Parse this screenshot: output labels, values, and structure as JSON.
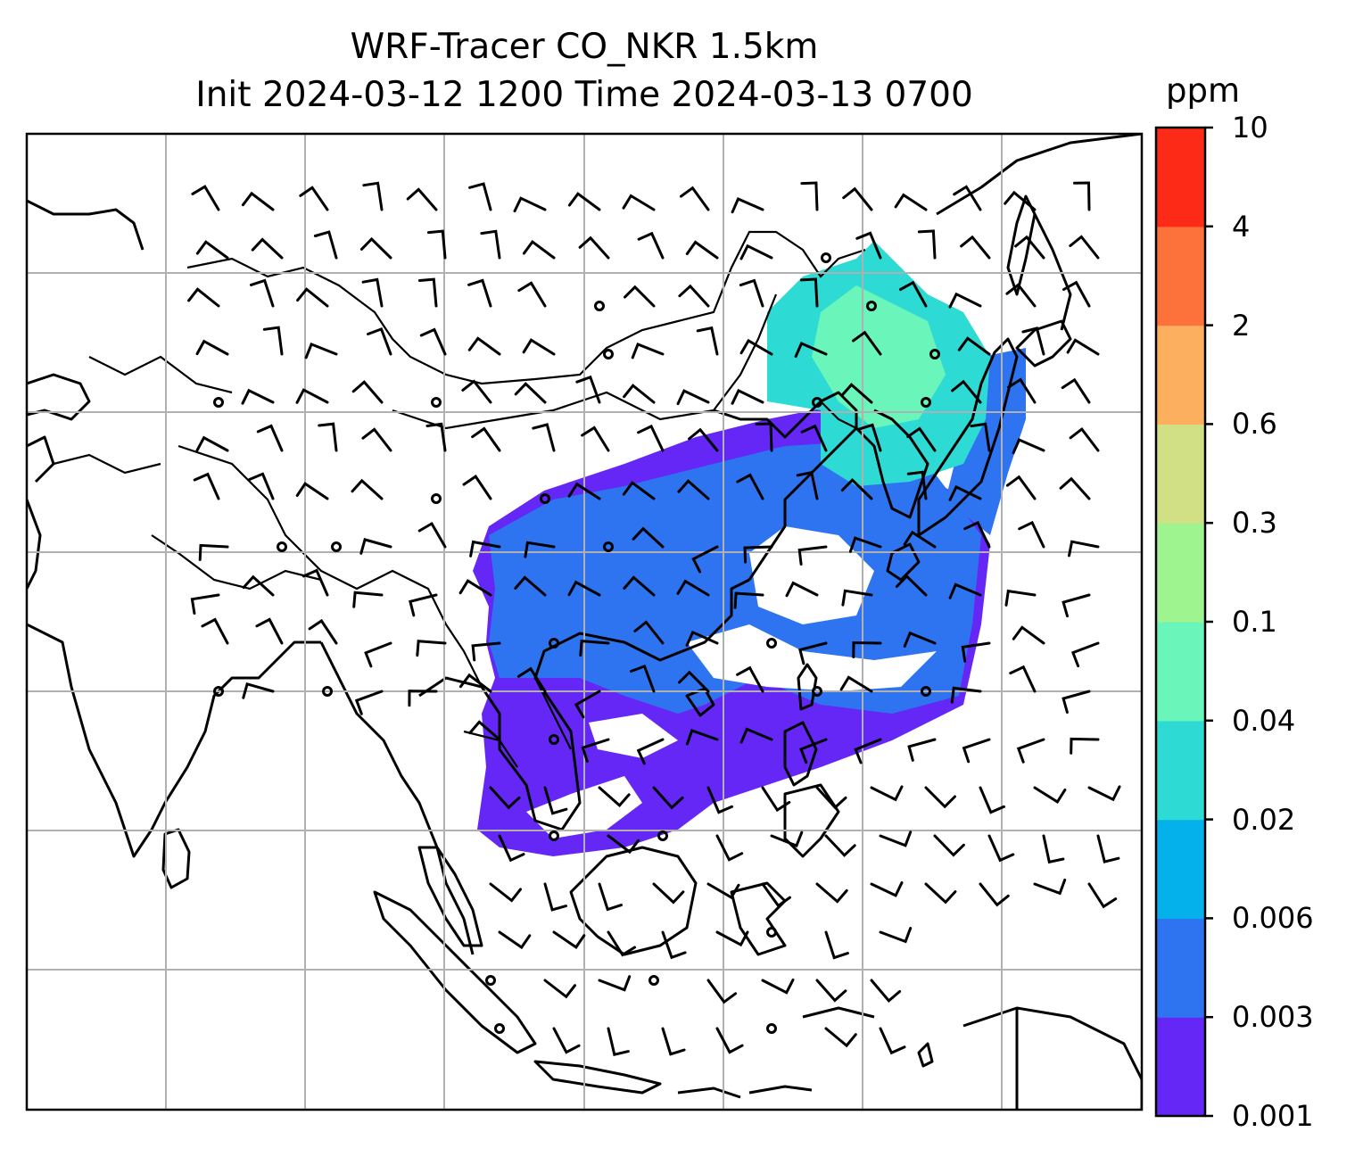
{
  "title": {
    "line1": "WRF-Tracer CO_NKR 1.5km",
    "line2": "Init 2024-03-12 1200 Time 2024-03-13 0700"
  },
  "colorbar": {
    "unit": "ppm",
    "levels": [
      "0.001",
      "0.003",
      "0.006",
      "0.02",
      "0.04",
      "0.1",
      "0.3",
      "0.6",
      "2",
      "4",
      "10"
    ],
    "colors": [
      "#6427f5",
      "#2e74f0",
      "#05b1ea",
      "#2edbd4",
      "#6af5bb",
      "#9ef58f",
      "#d1e084",
      "#fcaf5e",
      "#fd713a",
      "#fc2a17"
    ]
  },
  "map": {
    "grid": true,
    "grid_color": "#b0b0b0",
    "coastline_color": "#000000",
    "features": [
      "coastlines",
      "country borders",
      "wind barbs",
      "calm wind circles",
      "CO_NKR tracer concentration"
    ]
  }
}
